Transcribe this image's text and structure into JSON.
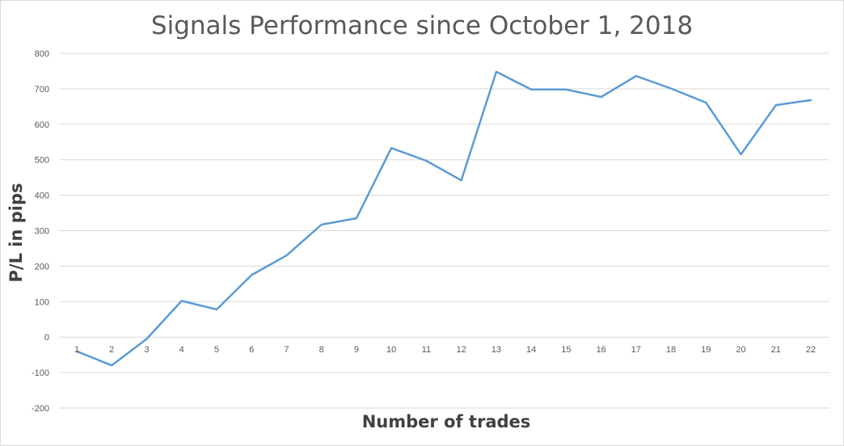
{
  "chart_data": {
    "type": "line",
    "title": "Signals Performance since October 1, 2018",
    "xlabel": "Number of trades",
    "ylabel": "P/L in pips",
    "ylim": [
      -200,
      800
    ],
    "yticks": [
      -200,
      -100,
      0,
      100,
      200,
      300,
      400,
      500,
      600,
      700,
      800
    ],
    "grid": true,
    "legend": "none",
    "categories": [
      "1",
      "2",
      "3",
      "4",
      "5",
      "6",
      "7",
      "8",
      "9",
      "10",
      "11",
      "12",
      "13",
      "14",
      "15",
      "16",
      "17",
      "18",
      "19",
      "20",
      "21",
      "22"
    ],
    "series": [
      {
        "values": [
          -40,
          -80,
          -5,
          102,
          78,
          175,
          230,
          317,
          335,
          533,
          497,
          442,
          748,
          698,
          698,
          677,
          736,
          701,
          661,
          515,
          654,
          668
        ],
        "color": "#5b9bd5"
      }
    ]
  }
}
